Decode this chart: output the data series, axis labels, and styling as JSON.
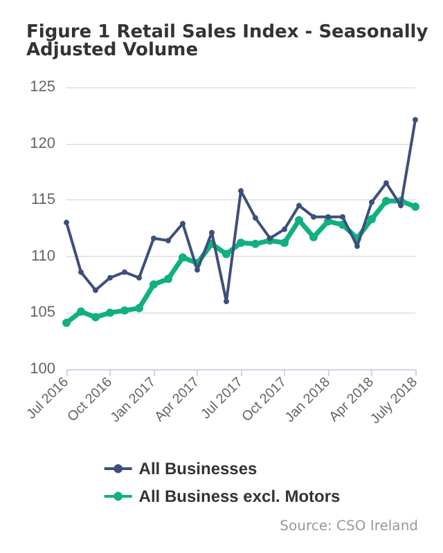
{
  "chart_data": {
    "type": "line",
    "title": "Figure 1 Retail Sales Index - Seasonally Adjusted Volume",
    "categories": [
      "Jul 2016",
      null,
      null,
      "Oct 2016",
      null,
      null,
      "Jan 2017",
      null,
      null,
      "Apr 2017",
      null,
      null,
      "Jul 2017",
      null,
      null,
      "Oct 2017",
      null,
      null,
      "Jan 2018",
      null,
      null,
      "Apr 2018",
      null,
      null,
      "July 2018"
    ],
    "series": [
      {
        "name": "All Businesses",
        "color": "#3d4f7c",
        "values": [
          113.0,
          108.6,
          107.0,
          108.1,
          108.6,
          108.1,
          111.6,
          111.4,
          112.9,
          108.8,
          112.1,
          106.0,
          115.8,
          113.4,
          111.6,
          112.4,
          114.5,
          113.5,
          113.5,
          113.5,
          110.9,
          114.8,
          116.5,
          114.5,
          122.1
        ]
      },
      {
        "name": "All Business excl. Motors",
        "color": "#10b080",
        "values": [
          104.1,
          105.1,
          104.6,
          105.0,
          105.2,
          105.4,
          107.5,
          108.0,
          109.9,
          109.4,
          111.1,
          110.2,
          111.2,
          111.1,
          111.4,
          111.2,
          113.2,
          111.7,
          113.1,
          112.8,
          111.6,
          113.3,
          114.9,
          114.9,
          114.4
        ]
      }
    ],
    "ylim": [
      100,
      125
    ],
    "yticks": [
      100,
      105,
      110,
      115,
      120,
      125
    ],
    "grid": "y",
    "legend": "bottom",
    "marker": "circle",
    "line_style": "solid",
    "annotations": [
      "Source: CSO Ireland"
    ]
  }
}
